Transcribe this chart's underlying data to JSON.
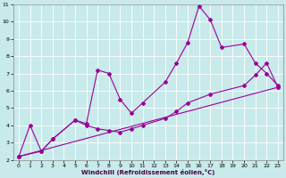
{
  "title": "",
  "xlabel": "Windchill (Refroidissement éolien,°C)",
  "ylabel": "",
  "bg_color": "#c8eaea",
  "line_color": "#990099",
  "grid_color": "#ffffff",
  "xlim": [
    -0.5,
    23.5
  ],
  "ylim": [
    2,
    11
  ],
  "xticks": [
    0,
    1,
    2,
    3,
    4,
    5,
    6,
    7,
    8,
    9,
    10,
    11,
    12,
    13,
    14,
    15,
    16,
    17,
    18,
    19,
    20,
    21,
    22,
    23
  ],
  "yticks": [
    2,
    3,
    4,
    5,
    6,
    7,
    8,
    9,
    10,
    11
  ],
  "line1_x": [
    0,
    1,
    2,
    3,
    5,
    6,
    7,
    8,
    9,
    10,
    11,
    13,
    14,
    15,
    16,
    17,
    18,
    20,
    21,
    22,
    23
  ],
  "line1_y": [
    2.2,
    4.0,
    2.5,
    3.2,
    4.3,
    4.1,
    7.2,
    7.0,
    5.5,
    4.7,
    5.3,
    6.5,
    7.6,
    8.8,
    10.9,
    10.1,
    8.5,
    8.7,
    7.6,
    7.0,
    6.3
  ],
  "line2_x": [
    0,
    2,
    3,
    5,
    6,
    7,
    8,
    9,
    10,
    11,
    13,
    14,
    15,
    17,
    20,
    21,
    22,
    23
  ],
  "line2_y": [
    2.2,
    2.5,
    3.2,
    4.3,
    4.0,
    3.8,
    3.7,
    3.6,
    3.8,
    4.0,
    4.4,
    4.8,
    5.3,
    5.8,
    6.3,
    6.9,
    7.6,
    6.2
  ],
  "line3_x": [
    0,
    23
  ],
  "line3_y": [
    2.2,
    6.2
  ],
  "marker": "D",
  "markersize": 2,
  "linewidth": 0.8,
  "tick_fontsize": 4.5,
  "xlabel_fontsize": 5.0
}
